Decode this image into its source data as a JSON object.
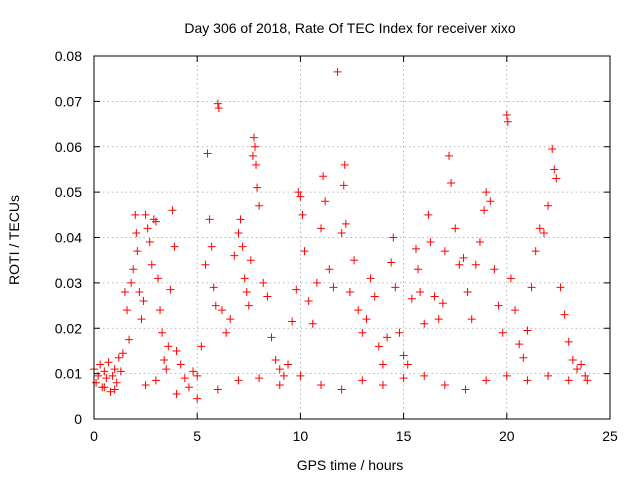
{
  "chart_data": {
    "type": "scatter",
    "title": "Day 306 of 2018, Rate Of TEC Index for receiver xixo",
    "xlabel": "GPS time / hours",
    "ylabel": "ROTI / TECUs",
    "xlim": [
      0,
      25
    ],
    "ylim": [
      0,
      0.08
    ],
    "xticks": [
      0,
      5,
      10,
      15,
      20,
      25
    ],
    "xtick_labels": [
      "0",
      "5",
      "10",
      "15",
      "20",
      "25"
    ],
    "yticks": [
      0,
      0.01,
      0.02,
      0.03,
      0.04,
      0.05,
      0.06,
      0.07,
      0.08
    ],
    "ytick_labels": [
      "0",
      "0.01",
      "0.02",
      "0.03",
      "0.04",
      "0.05",
      "0.06",
      "0.07",
      "0.08"
    ],
    "grid": true,
    "marker": "plus",
    "color": "#ff0000",
    "series": [
      {
        "values": [
          [
            0.0,
            0.011
          ],
          [
            0.1,
            0.008
          ],
          [
            0.2,
            0.0095
          ],
          [
            0.3,
            0.012
          ],
          [
            0.4,
            0.007
          ],
          [
            0.5,
            0.0105
          ],
          [
            0.6,
            0.009
          ],
          [
            0.7,
            0.0125
          ],
          [
            0.8,
            0.006
          ],
          [
            0.9,
            0.0095
          ],
          [
            1.0,
            0.011
          ],
          [
            1.1,
            0.008
          ],
          [
            1.2,
            0.0135
          ],
          [
            1.3,
            0.0105
          ],
          [
            1.4,
            0.0145
          ],
          [
            1.5,
            0.028
          ],
          [
            1.6,
            0.024
          ],
          [
            1.7,
            0.0175
          ],
          [
            1.8,
            0.03
          ],
          [
            1.9,
            0.033
          ],
          [
            2.0,
            0.045
          ],
          [
            2.05,
            0.041
          ],
          [
            2.1,
            0.037
          ],
          [
            2.2,
            0.028
          ],
          [
            2.3,
            0.022
          ],
          [
            2.4,
            0.026
          ],
          [
            2.5,
            0.045
          ],
          [
            2.6,
            0.042
          ],
          [
            2.7,
            0.039
          ],
          [
            2.8,
            0.034
          ],
          [
            2.9,
            0.044
          ],
          [
            3.0,
            0.0435
          ],
          [
            3.1,
            0.031
          ],
          [
            3.2,
            0.024
          ],
          [
            3.3,
            0.019
          ],
          [
            3.4,
            0.013
          ],
          [
            3.5,
            0.011
          ],
          [
            3.6,
            0.016
          ],
          [
            3.7,
            0.0285
          ],
          [
            3.8,
            0.046
          ],
          [
            3.9,
            0.038
          ],
          [
            4.0,
            0.015
          ],
          [
            4.2,
            0.012
          ],
          [
            4.4,
            0.009
          ],
          [
            4.6,
            0.007
          ],
          [
            4.8,
            0.0105
          ],
          [
            5.0,
            0.0095
          ],
          [
            5.2,
            0.016
          ],
          [
            5.4,
            0.034
          ],
          [
            5.5,
            0.0585
          ],
          [
            5.6,
            0.044
          ],
          [
            5.7,
            0.038
          ],
          [
            5.8,
            0.029
          ],
          [
            5.9,
            0.025
          ],
          [
            6.0,
            0.0695
          ],
          [
            6.05,
            0.0685
          ],
          [
            6.2,
            0.024
          ],
          [
            6.4,
            0.019
          ],
          [
            6.6,
            0.022
          ],
          [
            6.8,
            0.036
          ],
          [
            7.0,
            0.041
          ],
          [
            7.1,
            0.044
          ],
          [
            7.2,
            0.038
          ],
          [
            7.3,
            0.031
          ],
          [
            7.4,
            0.028
          ],
          [
            7.5,
            0.025
          ],
          [
            7.6,
            0.035
          ],
          [
            7.7,
            0.058
          ],
          [
            7.75,
            0.062
          ],
          [
            7.8,
            0.06
          ],
          [
            7.85,
            0.056
          ],
          [
            7.9,
            0.051
          ],
          [
            8.0,
            0.047
          ],
          [
            8.2,
            0.03
          ],
          [
            8.4,
            0.027
          ],
          [
            8.6,
            0.018
          ],
          [
            8.8,
            0.013
          ],
          [
            9.0,
            0.011
          ],
          [
            9.2,
            0.0095
          ],
          [
            9.4,
            0.012
          ],
          [
            9.6,
            0.0215
          ],
          [
            9.8,
            0.0285
          ],
          [
            9.9,
            0.05
          ],
          [
            10.0,
            0.049
          ],
          [
            10.1,
            0.045
          ],
          [
            10.2,
            0.037
          ],
          [
            10.4,
            0.026
          ],
          [
            10.6,
            0.021
          ],
          [
            10.8,
            0.03
          ],
          [
            11.0,
            0.042
          ],
          [
            11.1,
            0.0535
          ],
          [
            11.2,
            0.048
          ],
          [
            11.4,
            0.033
          ],
          [
            11.6,
            0.029
          ],
          [
            11.8,
            0.0765
          ],
          [
            12.0,
            0.041
          ],
          [
            12.1,
            0.0515
          ],
          [
            12.15,
            0.056
          ],
          [
            12.2,
            0.043
          ],
          [
            12.4,
            0.028
          ],
          [
            12.6,
            0.035
          ],
          [
            12.8,
            0.024
          ],
          [
            13.0,
            0.019
          ],
          [
            13.2,
            0.022
          ],
          [
            13.4,
            0.031
          ],
          [
            13.6,
            0.027
          ],
          [
            13.8,
            0.016
          ],
          [
            14.0,
            0.012
          ],
          [
            14.2,
            0.018
          ],
          [
            14.4,
            0.0345
          ],
          [
            14.5,
            0.04
          ],
          [
            14.6,
            0.029
          ],
          [
            14.8,
            0.019
          ],
          [
            15.0,
            0.014
          ],
          [
            15.2,
            0.012
          ],
          [
            15.4,
            0.0265
          ],
          [
            15.6,
            0.0375
          ],
          [
            15.7,
            0.033
          ],
          [
            15.8,
            0.028
          ],
          [
            16.0,
            0.021
          ],
          [
            16.2,
            0.045
          ],
          [
            16.3,
            0.039
          ],
          [
            16.5,
            0.027
          ],
          [
            16.7,
            0.022
          ],
          [
            16.9,
            0.0255
          ],
          [
            17.0,
            0.037
          ],
          [
            17.2,
            0.058
          ],
          [
            17.3,
            0.052
          ],
          [
            17.5,
            0.042
          ],
          [
            17.7,
            0.034
          ],
          [
            17.9,
            0.0355
          ],
          [
            18.1,
            0.028
          ],
          [
            18.3,
            0.022
          ],
          [
            18.5,
            0.034
          ],
          [
            18.7,
            0.039
          ],
          [
            18.9,
            0.046
          ],
          [
            19.0,
            0.05
          ],
          [
            19.2,
            0.048
          ],
          [
            19.4,
            0.033
          ],
          [
            19.6,
            0.025
          ],
          [
            19.8,
            0.019
          ],
          [
            20.0,
            0.067
          ],
          [
            20.05,
            0.0655
          ],
          [
            20.2,
            0.031
          ],
          [
            20.4,
            0.024
          ],
          [
            20.6,
            0.0165
          ],
          [
            20.8,
            0.0135
          ],
          [
            21.0,
            0.0195
          ],
          [
            21.2,
            0.029
          ],
          [
            21.4,
            0.037
          ],
          [
            21.6,
            0.042
          ],
          [
            21.8,
            0.041
          ],
          [
            22.0,
            0.047
          ],
          [
            22.2,
            0.0595
          ],
          [
            22.3,
            0.055
          ],
          [
            22.4,
            0.053
          ],
          [
            22.6,
            0.029
          ],
          [
            22.8,
            0.023
          ],
          [
            23.0,
            0.017
          ],
          [
            23.2,
            0.013
          ],
          [
            23.4,
            0.011
          ],
          [
            23.6,
            0.012
          ],
          [
            23.8,
            0.0095
          ],
          [
            23.9,
            0.0085
          ],
          [
            0.5,
            0.007
          ],
          [
            1.0,
            0.0065
          ],
          [
            2.5,
            0.0075
          ],
          [
            3.0,
            0.0085
          ],
          [
            4.0,
            0.0055
          ],
          [
            5.0,
            0.0045
          ],
          [
            6.0,
            0.0065
          ],
          [
            7.0,
            0.0085
          ],
          [
            8.0,
            0.009
          ],
          [
            9.0,
            0.0075
          ],
          [
            10.0,
            0.0095
          ],
          [
            11.0,
            0.0075
          ],
          [
            12.0,
            0.0065
          ],
          [
            13.0,
            0.0085
          ],
          [
            14.0,
            0.0075
          ],
          [
            15.0,
            0.009
          ],
          [
            16.0,
            0.0095
          ],
          [
            17.0,
            0.0075
          ],
          [
            18.0,
            0.0065
          ],
          [
            19.0,
            0.0085
          ],
          [
            20.0,
            0.0095
          ],
          [
            21.0,
            0.0085
          ],
          [
            22.0,
            0.0095
          ],
          [
            23.0,
            0.0085
          ]
        ]
      }
    ]
  }
}
